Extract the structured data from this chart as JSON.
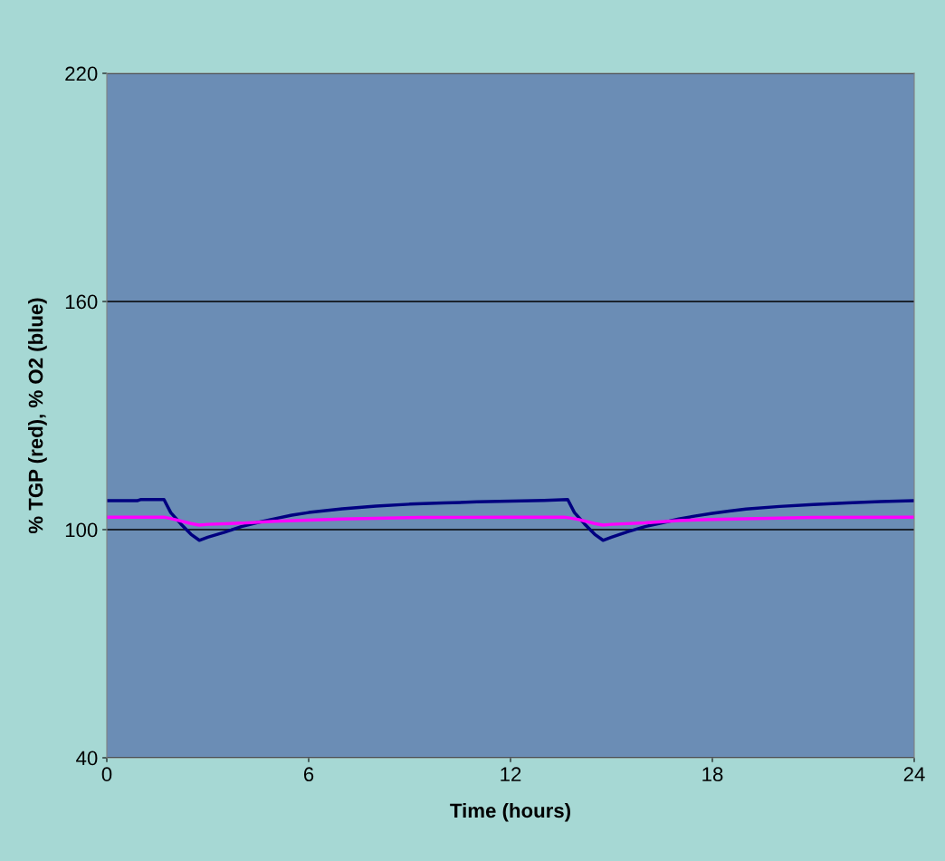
{
  "chart_data": {
    "type": "line",
    "xlabel": "Time (hours)",
    "ylabel": "% TGP (red), % O2 (blue)",
    "xlim": [
      0,
      24
    ],
    "xticks": [
      0,
      6,
      12,
      18,
      24
    ],
    "ylim": [
      40,
      220
    ],
    "yticks": [
      40,
      100,
      160,
      220
    ],
    "grid": "y",
    "marker": "none",
    "line_style": "solid",
    "series": [
      {
        "color": "#000080",
        "x": [
          0,
          0.9,
          1.0,
          1.7,
          1.9,
          2.2,
          2.5,
          2.75,
          3.0,
          3.5,
          4.0,
          4.5,
          5.0,
          5.5,
          6.0,
          6.5,
          7.0,
          8.0,
          9.0,
          10.0,
          11.0,
          12.0,
          13.0,
          13.7,
          13.9,
          14.2,
          14.5,
          14.75,
          15.0,
          15.5,
          16.0,
          16.5,
          17.0,
          17.5,
          18.0,
          18.5,
          19.0,
          20.0,
          21.0,
          22.0,
          23.0,
          24.0
        ],
        "values": [
          107.6,
          107.6,
          107.9,
          107.9,
          104.5,
          101.5,
          98.8,
          97.2,
          98.0,
          99.3,
          100.8,
          101.9,
          102.9,
          103.8,
          104.5,
          105.0,
          105.5,
          106.2,
          106.7,
          107.0,
          107.3,
          107.5,
          107.7,
          107.9,
          104.5,
          101.5,
          98.8,
          97.2,
          98.0,
          99.5,
          100.8,
          101.8,
          102.8,
          103.6,
          104.3,
          104.9,
          105.4,
          106.1,
          106.6,
          107.0,
          107.4,
          107.6
        ]
      },
      {
        "color": "#ff00ff",
        "x": [
          0,
          1.7,
          2.0,
          2.5,
          2.75,
          3.0,
          4.0,
          5.0,
          6.0,
          7.0,
          9.3,
          12.0,
          13.6,
          14.0,
          14.5,
          14.75,
          15.0,
          16.0,
          17.0,
          18.0,
          21.0,
          24.0
        ],
        "values": [
          103.3,
          103.3,
          102.7,
          101.6,
          101.2,
          101.4,
          101.7,
          102.2,
          102.5,
          102.8,
          103.2,
          103.3,
          103.3,
          102.7,
          101.6,
          101.2,
          101.4,
          101.8,
          102.4,
          102.7,
          103.2,
          103.3
        ]
      }
    ]
  }
}
